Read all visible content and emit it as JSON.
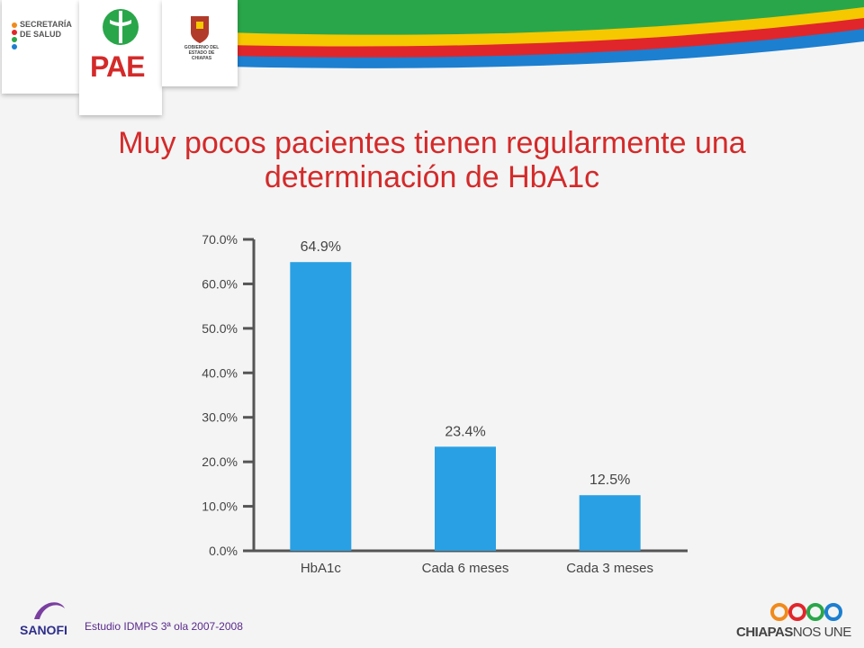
{
  "header": {
    "secretaria_logo_text": "SECRETARÍA DE SALUD",
    "pae_logo_text": "PAE",
    "gobierno_logo_text": "GOBIERNO DEL ESTADO DE CHIAPAS"
  },
  "title": "Muy pocos pacientes tienen regularmente una determinación de HbA1c",
  "chart_data": {
    "type": "bar",
    "categories": [
      "HbA1c",
      "Cada 6 meses",
      "Cada 3 meses"
    ],
    "values": [
      64.9,
      23.4,
      12.5
    ],
    "data_labels": [
      "64.9%",
      "23.4%",
      "12.5%"
    ],
    "yticks": [
      "0.0%",
      "10.0%",
      "20.0%",
      "30.0%",
      "40.0%",
      "50.0%",
      "60.0%",
      "70.0%"
    ],
    "ylim": [
      0,
      70
    ],
    "grid": false,
    "bar_color": "#29a0e3",
    "title": "",
    "xlabel": "",
    "ylabel": ""
  },
  "footer": {
    "source_note": "Estudio IDMPS 3ª ola 2007-2008",
    "sanofi_text": "SANOFI",
    "chiapas_bold": "CHIAPAS",
    "chiapas_light": "NOS UNE"
  },
  "colors": {
    "title": "#d42a2a",
    "banner_green": "#2aa64a",
    "banner_yellow": "#f5c800",
    "banner_red": "#e0262b",
    "banner_blue": "#1c7fd0"
  }
}
